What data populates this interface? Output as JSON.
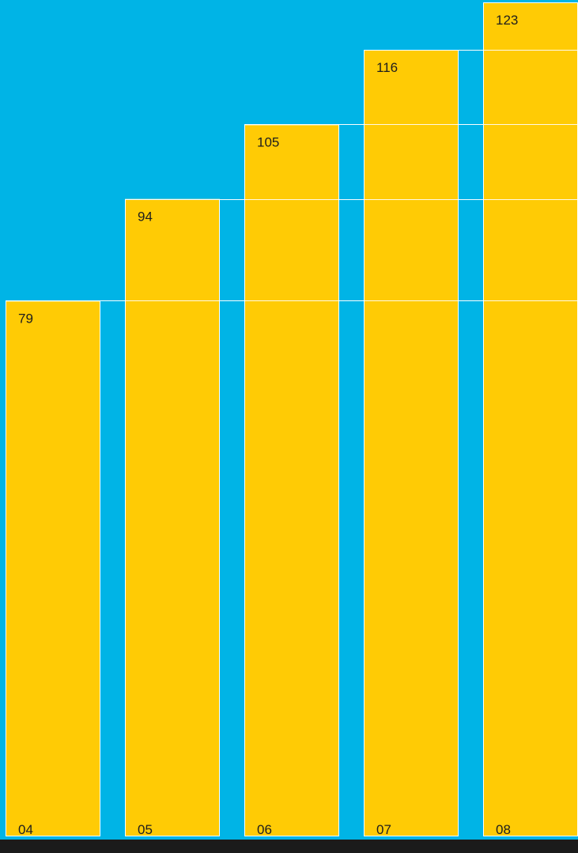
{
  "colors": {
    "background": "#00b4e6",
    "bar": "#ffcb05",
    "bar_outline": "#ffffff",
    "text": "#1e1e1e",
    "footer_band": "#1b1b1b"
  },
  "chart_data": {
    "type": "bar",
    "categories": [
      "04",
      "05",
      "06",
      "07",
      "08"
    ],
    "values": [
      79,
      94,
      105,
      116,
      123
    ],
    "title": "",
    "xlabel": "",
    "ylabel": "",
    "ylim": [
      0,
      123
    ],
    "grid": true,
    "legend": "none"
  }
}
